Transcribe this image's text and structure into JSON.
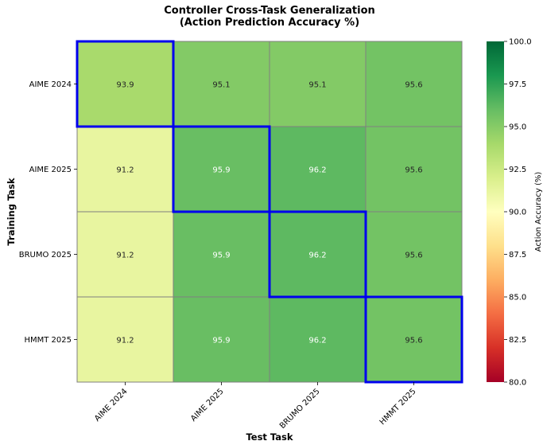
{
  "chart_data": {
    "type": "heatmap",
    "title": "Controller Cross-Task Generalization",
    "subtitle": "(Action Prediction Accuracy %)",
    "xlabel": "Test Task",
    "ylabel": "Training Task",
    "x_categories": [
      "AIME 2024",
      "AIME 2025",
      "BRUMO 2025",
      "HMMT 2025"
    ],
    "y_categories": [
      "AIME 2024",
      "AIME 2025",
      "BRUMO 2025",
      "HMMT 2025"
    ],
    "values": [
      [
        93.9,
        95.1,
        95.1,
        95.6
      ],
      [
        91.2,
        95.9,
        96.2,
        95.6
      ],
      [
        91.2,
        95.9,
        96.2,
        95.6
      ],
      [
        91.2,
        95.9,
        96.2,
        95.6
      ]
    ],
    "value_labels": [
      [
        "93.9",
        "95.1",
        "95.1",
        "95.6"
      ],
      [
        "91.2",
        "95.9",
        "96.2",
        "95.6"
      ],
      [
        "91.2",
        "95.9",
        "96.2",
        "95.6"
      ],
      [
        "91.2",
        "95.9",
        "96.2",
        "95.6"
      ]
    ],
    "highlighted_cells": [
      [
        0,
        0
      ],
      [
        1,
        1
      ],
      [
        2,
        2
      ],
      [
        3,
        3
      ]
    ],
    "highlight_color": "#0000ee",
    "colormap": "RdYlGn",
    "colorbar": {
      "label": "Action Accuracy (%)",
      "range": [
        80.0,
        100.0
      ],
      "ticks": [
        "80.0",
        "82.5",
        "85.0",
        "87.5",
        "90.0",
        "92.5",
        "95.0",
        "97.5",
        "100.0"
      ],
      "placement": "right"
    }
  }
}
